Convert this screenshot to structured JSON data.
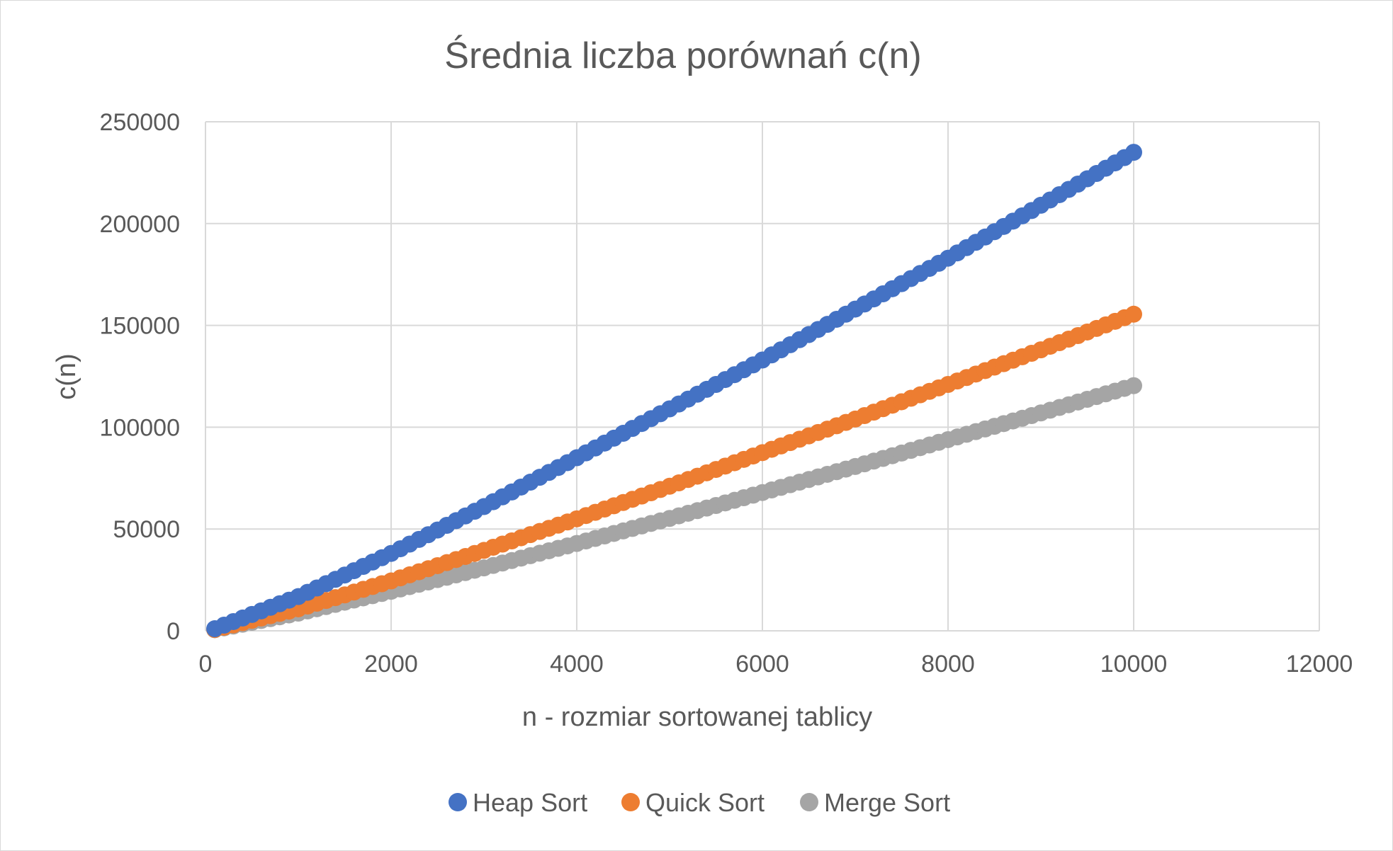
{
  "chart_data": {
    "type": "scatter",
    "title": "Średnia liczba porównań c(n)",
    "xlabel": "n - rozmiar sortowanej tablicy",
    "ylabel": "c(n)",
    "xlim": [
      0,
      12000
    ],
    "ylim": [
      0,
      250000
    ],
    "x_ticks": [
      0,
      2000,
      4000,
      6000,
      8000,
      10000,
      12000
    ],
    "y_ticks": [
      0,
      50000,
      100000,
      150000,
      200000,
      250000
    ],
    "x_tick_labels": [
      "0",
      "2000",
      "4000",
      "6000",
      "8000",
      "10000",
      "12000"
    ],
    "y_tick_labels": [
      "0",
      "50000",
      "100000",
      "150000",
      "200000",
      "250000"
    ],
    "grid": true,
    "legend_position": "bottom",
    "x_range": {
      "start": 100,
      "end": 10000,
      "step": 100
    },
    "series": [
      {
        "name": "Heap Sort",
        "color": "#4472c4",
        "x": [
          100,
          1000,
          2000,
          3000,
          4000,
          5000,
          6000,
          7000,
          8000,
          9000,
          10000
        ],
        "y": [
          1030,
          16800,
          38000,
          61000,
          85000,
          109000,
          133000,
          158000,
          183000,
          209000,
          235000
        ]
      },
      {
        "name": "Quick Sort",
        "color": "#ed7d31",
        "x": [
          100,
          1000,
          2000,
          3000,
          4000,
          5000,
          6000,
          7000,
          8000,
          9000,
          10000
        ],
        "y": [
          640,
          10800,
          24500,
          39500,
          55000,
          71000,
          87500,
          104000,
          121000,
          138000,
          155500
        ]
      },
      {
        "name": "Merge Sort",
        "color": "#a5a5a5",
        "x": [
          100,
          1000,
          2000,
          3000,
          4000,
          5000,
          6000,
          7000,
          8000,
          9000,
          10000
        ],
        "y": [
          540,
          8700,
          19400,
          30900,
          42900,
          55200,
          67900,
          80700,
          93900,
          107000,
          120400
        ]
      }
    ]
  }
}
